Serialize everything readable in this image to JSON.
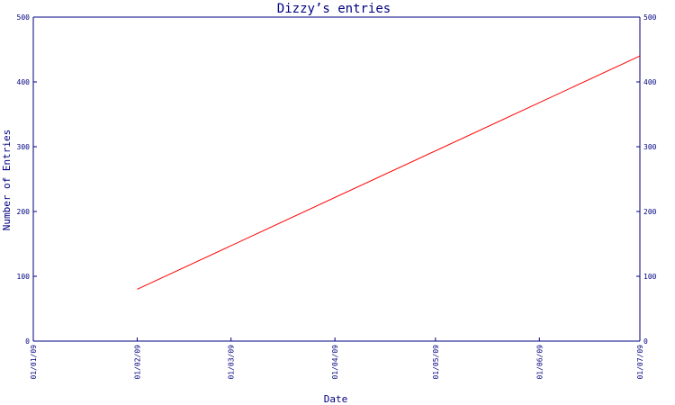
{
  "chart_data": {
    "type": "line",
    "title": "Dizzy’s entries",
    "xlabel": "Date",
    "ylabel": "Number of Entries",
    "x_ticks": [
      "01/01/09",
      "01/02/09",
      "01/03/09",
      "01/04/09",
      "01/05/09",
      "01/06/09",
      "01/07/09"
    ],
    "x_range": [
      "01/01/09",
      "01/07/09"
    ],
    "y_ticks": [
      0,
      100,
      200,
      300,
      400,
      500
    ],
    "ylim": [
      0,
      500
    ],
    "grid": false,
    "right_axis": true,
    "series": [
      {
        "color": "#ff0000",
        "x": [
          "01/02/09",
          "01/07/09"
        ],
        "y": [
          80,
          440
        ]
      }
    ]
  }
}
